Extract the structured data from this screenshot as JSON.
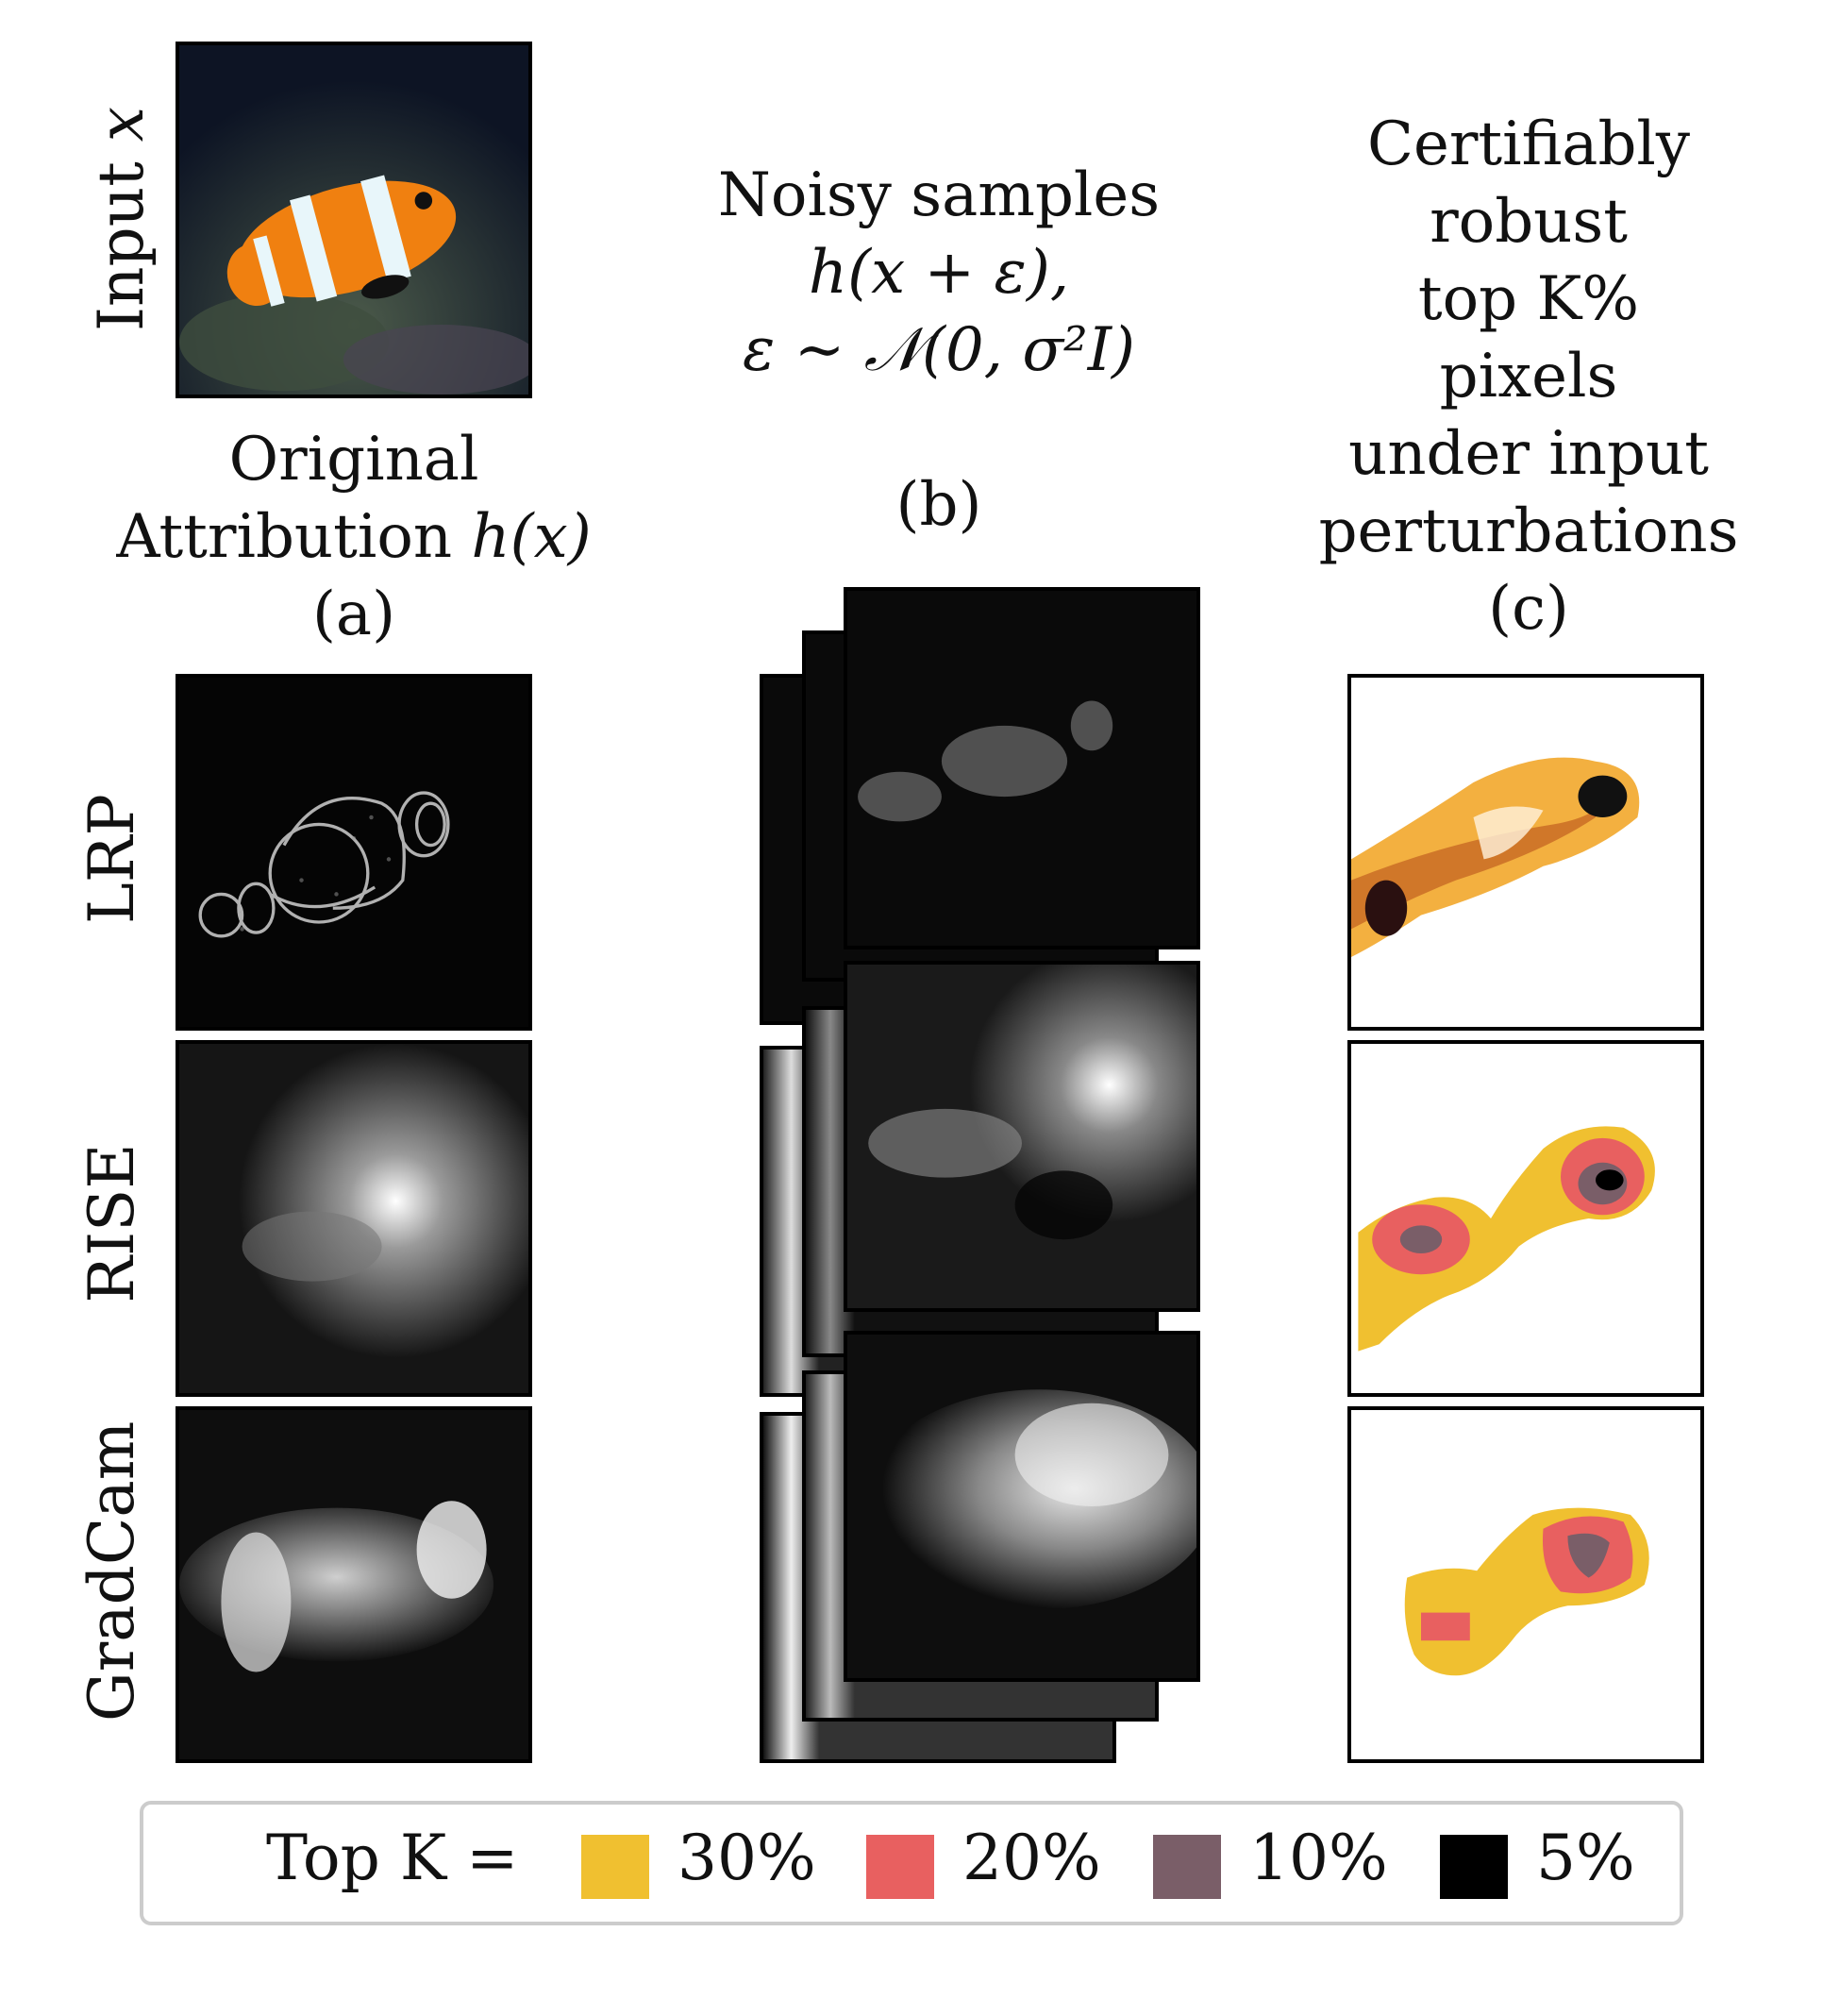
{
  "input_label": "Input",
  "input_var": "x",
  "col_a": {
    "lines": [
      "Original",
      "Attribution"
    ],
    "func": "h(x)",
    "tag": "(a)"
  },
  "col_b": {
    "line1": "Noisy samples",
    "line2": "h(x + ε),",
    "line3": "ε ∼ 𝒩(0, σ²I)",
    "tag": "(b)"
  },
  "col_c": {
    "lines": [
      "Certifiably",
      "robust",
      "top K%",
      "pixels",
      "under input",
      "perturbations"
    ],
    "tag": "(c)"
  },
  "rows": [
    "LRP",
    "RISE",
    "GradCam"
  ],
  "legend": {
    "prefix": "Top K =",
    "items": [
      {
        "label": "30%",
        "color": "#f0c030"
      },
      {
        "label": "20%",
        "color": "#e86060"
      },
      {
        "label": "10%",
        "color": "#7a5e68"
      },
      {
        "label": "5%",
        "color": "#000000"
      }
    ]
  },
  "colors": {
    "yellow": "#f0c030",
    "red": "#e86060",
    "mauve": "#7a5e68",
    "black": "#000000"
  }
}
